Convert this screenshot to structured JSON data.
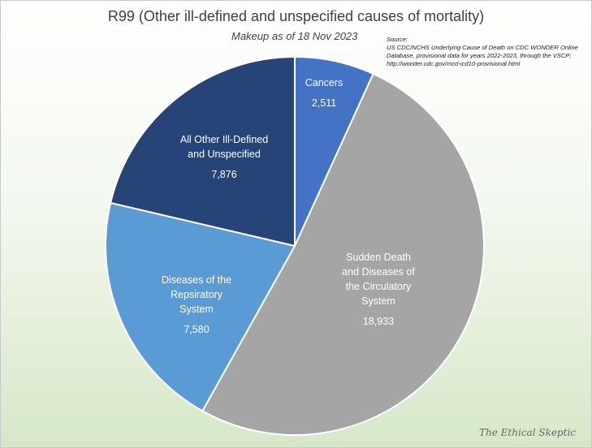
{
  "chart_data": {
    "type": "pie",
    "title": "R99 (Other ill-defined and unspecified causes of mortality)",
    "subtitle": "Makeup as of 18 Nov 2023",
    "source": {
      "heading": "Source:",
      "text": "US CDC/NCHS Underlying Cause of Death on CDC WONDER Online Database, provisional data for years 2022-2023, through the VSCP; http://wonder.cdc.gov/mcd-icd10-provisional.html"
    },
    "slices": [
      {
        "name": "Cancers",
        "label_lines": [
          "Cancers"
        ],
        "value_text": "2,511",
        "value": 2511,
        "color": "#4472c4"
      },
      {
        "name": "Sudden Death and Diseases of the Circulatory System",
        "label_lines": [
          "Sudden Death",
          "and Diseases of",
          "the Circulatory",
          "System"
        ],
        "value_text": "18,933",
        "value": 18933,
        "color": "#a5a5a5"
      },
      {
        "name": "Diseases of the Repsiratory System",
        "label_lines": [
          "Diseases of the",
          "Repsiratory",
          "System"
        ],
        "value_text": "7,580",
        "value": 7580,
        "color": "#5b9bd5"
      },
      {
        "name": "All Other Ill-Defined and Unspecified",
        "label_lines": [
          "All Other Ill-Defined",
          "and Unspecified"
        ],
        "value_text": "7,876",
        "value": 7876,
        "color": "#264478"
      }
    ]
  },
  "watermark": "The Ethical Skeptic"
}
